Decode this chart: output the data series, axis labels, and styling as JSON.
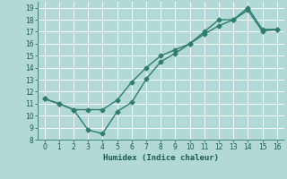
{
  "xlabel": "Humidex (Indice chaleur)",
  "x": [
    0,
    1,
    2,
    3,
    4,
    5,
    6,
    7,
    8,
    9,
    10,
    11,
    12,
    13,
    14,
    15,
    16
  ],
  "line1_y": [
    11.4,
    11.0,
    10.5,
    8.8,
    8.5,
    10.35,
    11.1,
    13.05,
    14.5,
    15.2,
    16.0,
    17.0,
    18.0,
    18.0,
    18.8,
    17.05,
    17.2
  ],
  "line2_y": [
    11.4,
    11.0,
    10.5,
    10.5,
    10.5,
    11.3,
    12.8,
    14.0,
    15.0,
    15.5,
    16.0,
    16.8,
    17.5,
    18.0,
    19.0,
    17.2,
    17.2
  ],
  "ylim": [
    8,
    19.5
  ],
  "xlim": [
    -0.5,
    16.5
  ],
  "yticks": [
    8,
    9,
    10,
    11,
    12,
    13,
    14,
    15,
    16,
    17,
    18,
    19
  ],
  "xticks": [
    0,
    1,
    2,
    3,
    4,
    5,
    6,
    7,
    8,
    9,
    10,
    11,
    12,
    13,
    14,
    15,
    16
  ],
  "line_color": "#2e7d6e",
  "bg_color": "#b2d8d8",
  "grid_color": "#ffffff",
  "marker": "D",
  "marker_size": 2.5,
  "line_width": 1.0
}
